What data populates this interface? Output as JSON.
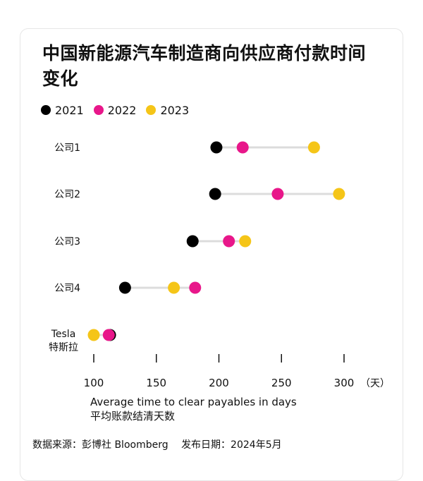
{
  "title": "中国新能源汽车制造商向供应商付款时间变化",
  "legend": [
    {
      "label": "2021",
      "color": "#000000"
    },
    {
      "label": "2022",
      "color": "#e8178a"
    },
    {
      "label": "2023",
      "color": "#f5c518"
    }
  ],
  "chart_data": {
    "type": "scatter",
    "subtype": "dumbbell",
    "categories": [
      [
        "公司1"
      ],
      [
        "公司2"
      ],
      [
        "公司3"
      ],
      [
        "公司4"
      ],
      [
        "Tesla",
        "特斯拉"
      ]
    ],
    "series": [
      {
        "name": "2021",
        "color": "#000000",
        "values": [
          198,
          197,
          179,
          125,
          113
        ]
      },
      {
        "name": "2022",
        "color": "#e8178a",
        "values": [
          219,
          247,
          208,
          181,
          112
        ]
      },
      {
        "name": "2023",
        "color": "#f5c518",
        "values": [
          276,
          296,
          221,
          164,
          100
        ]
      }
    ],
    "xlim": [
      90,
      310
    ],
    "xticks": [
      100,
      150,
      200,
      250,
      300
    ],
    "x_unit": "（天）",
    "xlabel": "Average time to clear payables in days",
    "xlabel_sub": "平均账款结清天数",
    "grid": false,
    "legend_position": "top-left"
  },
  "footer": {
    "source": "数据来源：彭博社 Bloomberg",
    "date": "发布日期：2024年5月"
  }
}
